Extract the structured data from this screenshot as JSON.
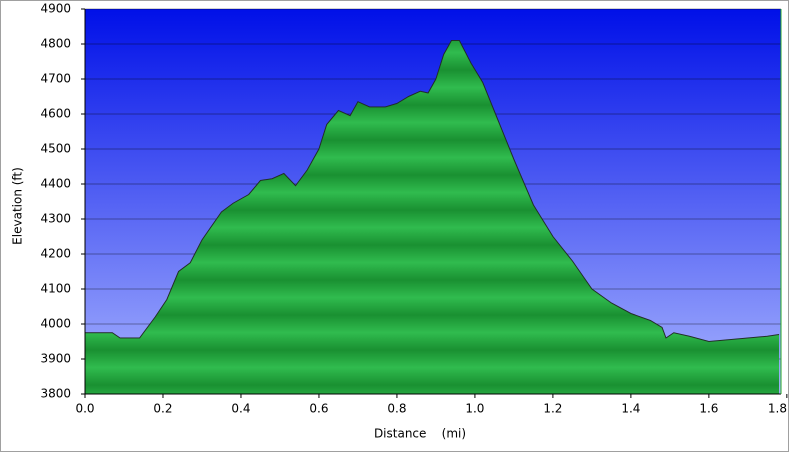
{
  "chart_data": {
    "type": "area",
    "x_label": "Distance    (mi)",
    "y_label": "Elevation (ft)",
    "x": [
      0.0,
      0.07,
      0.09,
      0.14,
      0.18,
      0.21,
      0.24,
      0.27,
      0.3,
      0.35,
      0.38,
      0.42,
      0.45,
      0.48,
      0.51,
      0.54,
      0.57,
      0.6,
      0.62,
      0.65,
      0.68,
      0.7,
      0.73,
      0.77,
      0.8,
      0.83,
      0.86,
      0.88,
      0.9,
      0.92,
      0.94,
      0.96,
      0.99,
      1.02,
      1.06,
      1.1,
      1.15,
      1.2,
      1.25,
      1.3,
      1.35,
      1.4,
      1.45,
      1.48,
      1.49,
      1.51,
      1.55,
      1.6,
      1.65,
      1.7,
      1.75,
      1.78
    ],
    "values": [
      3975,
      3975,
      3960,
      3960,
      4020,
      4070,
      4150,
      4175,
      4240,
      4320,
      4345,
      4370,
      4410,
      4415,
      4430,
      4395,
      4440,
      4500,
      4570,
      4610,
      4595,
      4635,
      4620,
      4620,
      4630,
      4650,
      4665,
      4660,
      4700,
      4770,
      4810,
      4810,
      4745,
      4690,
      4580,
      4470,
      4340,
      4250,
      4180,
      4100,
      4060,
      4030,
      4010,
      3990,
      3960,
      3975,
      3965,
      3950,
      3955,
      3960,
      3965,
      3970
    ],
    "color": "#1fa33a",
    "xlim": [
      0,
      1.785
    ],
    "ylim": [
      3800,
      4900
    ],
    "xticks": [
      {
        "value": 0,
        "label": "0.0"
      },
      {
        "value": 0.2,
        "label": "0.2"
      },
      {
        "value": 0.4,
        "label": "0.4"
      },
      {
        "value": 0.6,
        "label": "0.6"
      },
      {
        "value": 0.8,
        "label": "0.8"
      },
      {
        "value": 1.0,
        "label": "1.0"
      },
      {
        "value": 1.2,
        "label": "1.2"
      },
      {
        "value": 1.4,
        "label": "1.4"
      },
      {
        "value": 1.6,
        "label": "1.6"
      },
      {
        "value": 1.8,
        "label": "1.8"
      }
    ],
    "yticks": [
      3800,
      3900,
      4000,
      4100,
      4200,
      4300,
      4400,
      4500,
      4600,
      4700,
      4800,
      4900
    ],
    "grid": true
  }
}
